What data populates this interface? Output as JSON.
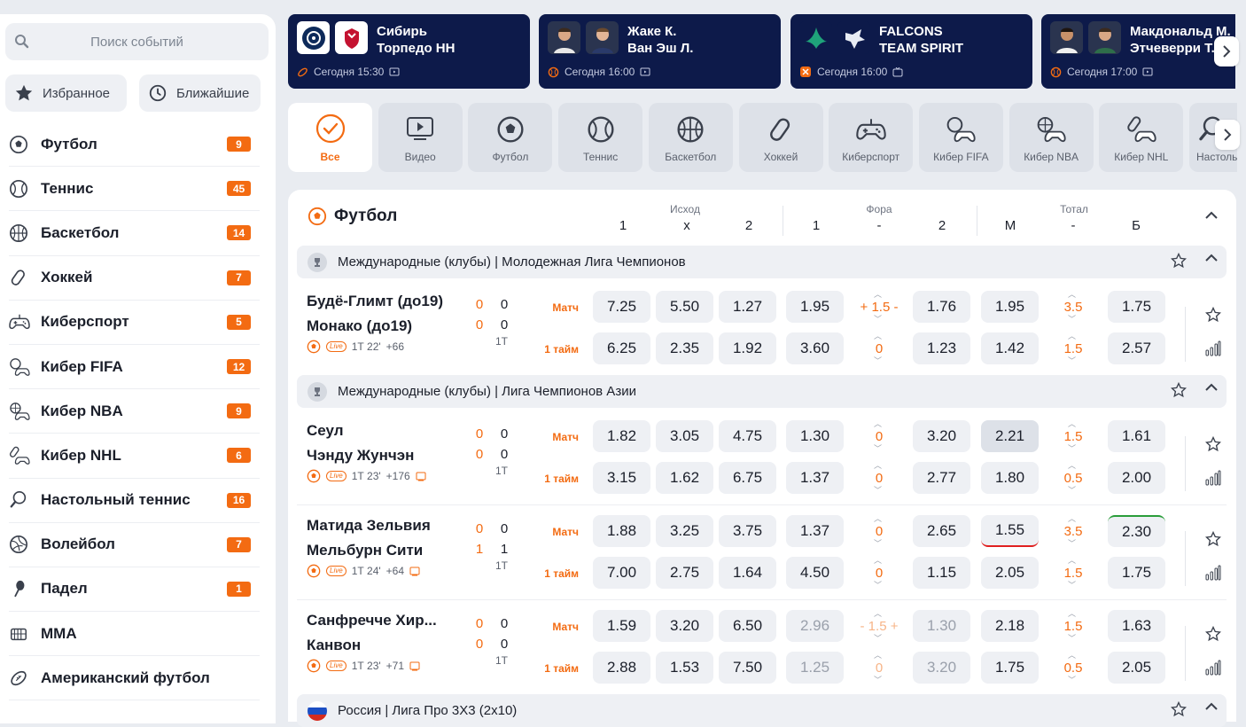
{
  "sidebar": {
    "search_placeholder": "Поиск событий",
    "favorites_label": "Избранное",
    "nearest_label": "Ближайшие",
    "sports": [
      {
        "label": "Футбол",
        "count": "9",
        "icon": "soccer-ball-icon"
      },
      {
        "label": "Теннис",
        "count": "45",
        "icon": "tennis-ball-icon"
      },
      {
        "label": "Баскетбол",
        "count": "14",
        "icon": "basketball-icon"
      },
      {
        "label": "Хоккей",
        "count": "7",
        "icon": "hockey-puck-icon"
      },
      {
        "label": "Киберспорт",
        "count": "5",
        "icon": "gamepad-icon"
      },
      {
        "label": "Кибер FIFA",
        "count": "12",
        "icon": "cyber-fifa-icon"
      },
      {
        "label": "Кибер NBA",
        "count": "9",
        "icon": "cyber-nba-icon"
      },
      {
        "label": "Кибер NHL",
        "count": "6",
        "icon": "cyber-nhl-icon"
      },
      {
        "label": "Настольный теннис",
        "count": "16",
        "icon": "table-tennis-icon"
      },
      {
        "label": "Волейбол",
        "count": "7",
        "icon": "volleyball-icon"
      },
      {
        "label": "Падел",
        "count": "1",
        "icon": "padel-icon"
      },
      {
        "label": "MMA",
        "count": "",
        "icon": "mma-icon"
      },
      {
        "label": "Американский футбол",
        "count": "",
        "icon": "american-football-icon"
      }
    ]
  },
  "top_events": [
    {
      "team1": "Сибирь",
      "team2": "Торпедо НН",
      "time": "Сегодня 15:30"
    },
    {
      "team1": "Жаке К.",
      "team2": "Ван Эш Л.",
      "time": "Сегодня 16:00"
    },
    {
      "team1": "FALCONS",
      "team2": "TEAM SPIRIT",
      "time": "Сегодня 16:00"
    },
    {
      "team1": "Макдональд М.",
      "team2": "Этчеверри Т.",
      "time": "Сегодня 17:00"
    }
  ],
  "sport_tabs": [
    {
      "label": "Все",
      "icon": "check-circle-icon"
    },
    {
      "label": "Видео",
      "icon": "video-icon"
    },
    {
      "label": "Футбол",
      "icon": "soccer-ball-icon"
    },
    {
      "label": "Теннис",
      "icon": "tennis-ball-icon"
    },
    {
      "label": "Баскетбол",
      "icon": "basketball-icon"
    },
    {
      "label": "Хоккей",
      "icon": "hockey-puck-icon"
    },
    {
      "label": "Киберспорт",
      "icon": "gamepad-icon"
    },
    {
      "label": "Кибер FIFA",
      "icon": "cyber-fifa-icon"
    },
    {
      "label": "Кибер NBA",
      "icon": "cyber-nba-icon"
    },
    {
      "label": "Кибер NHL",
      "icon": "cyber-nhl-icon"
    },
    {
      "label": "Настольный теннис",
      "icon": "table-tennis-icon"
    }
  ],
  "main": {
    "title": "Футбол",
    "groups": {
      "outcome": "Исход",
      "handicap": "Фора",
      "total": "Тотал"
    },
    "cols": {
      "o1": "1",
      "ox": "x",
      "o2": "2",
      "h1": "1",
      "hm": "-",
      "h2": "2",
      "tm": "М",
      "tmid": "-",
      "tb": "Б"
    }
  },
  "leagues": [
    {
      "name": "Международные (клубы) | Молодежная Лига Чемпионов"
    },
    {
      "name": "Международные (клубы) | Лига Чемпионов Азии"
    },
    {
      "name": "Россия | Лига Про 3Х3 (2х10)"
    }
  ],
  "matches": [
    {
      "team1": "Будё-Глимт (до19)",
      "team2": "Монако (до19)",
      "s1a": "0",
      "s1b": "0",
      "s2a": "0",
      "s2b": "0",
      "period": "1Т",
      "time": "1Т 22'",
      "more": "+66",
      "r1": {
        "type": "Матч",
        "o": [
          "7.25",
          "5.50",
          "1.27"
        ],
        "h1": "1.95",
        "hc": "+ 1.5 -",
        "h2": "1.76",
        "t1": "1.95",
        "tc": "3.5",
        "t2": "1.75"
      },
      "r2": {
        "type": "1 тайм",
        "o": [
          "6.25",
          "2.35",
          "1.92"
        ],
        "h1": "3.60",
        "hc": "0",
        "h2": "1.23",
        "t1": "1.42",
        "tc": "1.5",
        "t2": "2.57"
      }
    },
    {
      "team1": "Сеул",
      "team2": "Чэнду Жунчэн",
      "s1a": "0",
      "s1b": "0",
      "s2a": "0",
      "s2b": "0",
      "period": "1Т",
      "time": "1Т 23'",
      "more": "+176",
      "r1": {
        "type": "Матч",
        "o": [
          "1.82",
          "3.05",
          "4.75"
        ],
        "h1": "1.30",
        "hc": "0",
        "h2": "3.20",
        "t1": "2.21",
        "tc": "1.5",
        "t2": "1.61"
      },
      "r2": {
        "type": "1 тайм",
        "o": [
          "3.15",
          "1.62",
          "6.75"
        ],
        "h1": "1.37",
        "hc": "0",
        "h2": "2.77",
        "t1": "1.80",
        "tc": "0.5",
        "t2": "2.00"
      }
    },
    {
      "team1": "Матида Зельвия",
      "team2": "Мельбурн Сити",
      "s1a": "0",
      "s1b": "0",
      "s2a": "1",
      "s2b": "1",
      "period": "1Т",
      "time": "1Т 24'",
      "more": "+64",
      "r1": {
        "type": "Матч",
        "o": [
          "1.88",
          "3.25",
          "3.75"
        ],
        "h1": "1.37",
        "hc": "0",
        "h2": "2.65",
        "t1": "1.55",
        "tc": "3.5",
        "t2": "2.30"
      },
      "r2": {
        "type": "1 тайм",
        "o": [
          "7.00",
          "2.75",
          "1.64"
        ],
        "h1": "4.50",
        "hc": "0",
        "h2": "1.15",
        "t1": "2.05",
        "tc": "1.5",
        "t2": "1.75"
      }
    },
    {
      "team1": "Санфречче Хир...",
      "team2": "Канвон",
      "s1a": "0",
      "s1b": "0",
      "s2a": "0",
      "s2b": "0",
      "period": "1Т",
      "time": "1Т 23'",
      "more": "+71",
      "r1": {
        "type": "Матч",
        "o": [
          "1.59",
          "3.20",
          "6.50"
        ],
        "h1": "2.96",
        "hc": "- 1.5 +",
        "h2": "1.30",
        "t1": "2.18",
        "tc": "1.5",
        "t2": "1.63"
      },
      "r2": {
        "type": "1 тайм",
        "o": [
          "2.88",
          "1.53",
          "7.50"
        ],
        "h1": "1.25",
        "hc": "0",
        "h2": "3.20",
        "t1": "1.75",
        "tc": "0.5",
        "t2": "2.05"
      }
    }
  ],
  "accent": "#f36b12",
  "card_bg": "#0d1a4a"
}
